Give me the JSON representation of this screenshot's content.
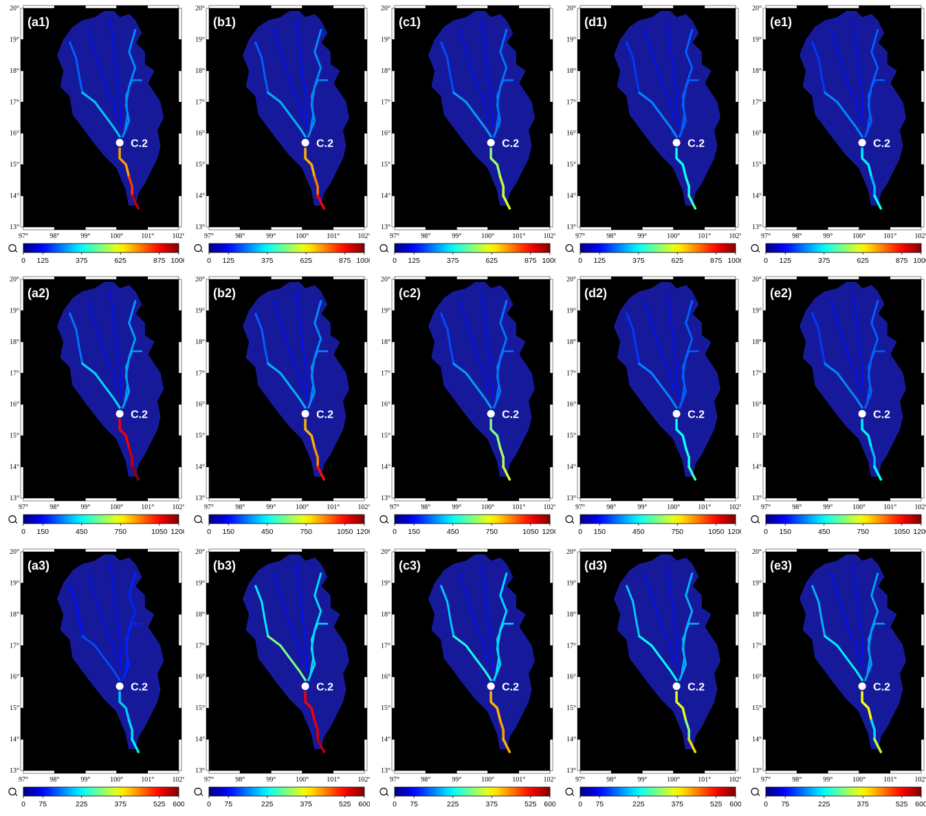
{
  "rows": [
    {
      "colorbar": {
        "min": 0,
        "max": 1000,
        "ticks": [
          "0",
          "125",
          "375",
          "625",
          "875",
          "1000"
        ]
      },
      "panels": [
        {
          "label": "(a1)",
          "gauge": "C.2",
          "downstream": [
            0.72,
            0.82,
            0.94
          ],
          "main_upstream": [
            0.22,
            0.32
          ],
          "east_upstream": 0.26
        },
        {
          "label": "(b1)",
          "gauge": "C.2",
          "downstream": [
            0.7,
            0.76,
            0.88
          ],
          "main_upstream": [
            0.22,
            0.3
          ],
          "east_upstream": 0.26
        },
        {
          "label": "(c1)",
          "gauge": "C.2",
          "downstream": [
            0.52,
            0.56,
            0.6
          ],
          "main_upstream": [
            0.2,
            0.28
          ],
          "east_upstream": 0.24
        },
        {
          "label": "(d1)",
          "gauge": "C.2",
          "downstream": [
            0.38,
            0.4,
            0.44
          ],
          "main_upstream": [
            0.18,
            0.26
          ],
          "east_upstream": 0.22
        },
        {
          "label": "(e1)",
          "gauge": "C.2",
          "downstream": [
            0.36,
            0.3,
            0.38
          ],
          "main_upstream": [
            0.18,
            0.26
          ],
          "east_upstream": 0.22
        }
      ]
    },
    {
      "colorbar": {
        "min": 0,
        "max": 1200,
        "ticks": [
          "0",
          "150",
          "450",
          "750",
          "1050",
          "1200"
        ]
      },
      "panels": [
        {
          "label": "(a2)",
          "gauge": "C.2",
          "downstream": [
            0.88,
            0.92,
            0.98
          ],
          "main_upstream": [
            0.24,
            0.34
          ],
          "east_upstream": 0.28
        },
        {
          "label": "(b2)",
          "gauge": "C.2",
          "downstream": [
            0.7,
            0.74,
            0.86
          ],
          "main_upstream": [
            0.22,
            0.3
          ],
          "east_upstream": 0.26
        },
        {
          "label": "(c2)",
          "gauge": "C.2",
          "downstream": [
            0.5,
            0.54,
            0.58
          ],
          "main_upstream": [
            0.2,
            0.28
          ],
          "east_upstream": 0.24
        },
        {
          "label": "(d2)",
          "gauge": "C.2",
          "downstream": [
            0.38,
            0.4,
            0.44
          ],
          "main_upstream": [
            0.18,
            0.26
          ],
          "east_upstream": 0.22
        },
        {
          "label": "(e2)",
          "gauge": "C.2",
          "downstream": [
            0.36,
            0.3,
            0.38
          ],
          "main_upstream": [
            0.18,
            0.26
          ],
          "east_upstream": 0.22
        }
      ]
    },
    {
      "colorbar": {
        "min": 0,
        "max": 600,
        "ticks": [
          "0",
          "75",
          "225",
          "375",
          "525",
          "600"
        ]
      },
      "panels": [
        {
          "label": "(a3)",
          "gauge": "C.2",
          "downstream": [
            0.32,
            0.34,
            0.36
          ],
          "main_upstream": [
            0.14,
            0.2
          ],
          "east_upstream": 0.16
        },
        {
          "label": "(b3)",
          "gauge": "C.2",
          "downstream": [
            0.88,
            0.9,
            0.94
          ],
          "main_upstream": [
            0.36,
            0.5
          ],
          "east_upstream": 0.34
        },
        {
          "label": "(c3)",
          "gauge": "C.2",
          "downstream": [
            0.7,
            0.72,
            0.7
          ],
          "main_upstream": [
            0.32,
            0.4
          ],
          "east_upstream": 0.34
        },
        {
          "label": "(d3)",
          "gauge": "C.2",
          "downstream": [
            0.6,
            0.5,
            0.66
          ],
          "main_upstream": [
            0.32,
            0.38
          ],
          "east_upstream": 0.3
        },
        {
          "label": "(e3)",
          "gauge": "C.2",
          "downstream": [
            0.62,
            0.34,
            0.56
          ],
          "main_upstream": [
            0.3,
            0.36
          ],
          "east_upstream": 0.28
        }
      ]
    }
  ],
  "map": {
    "lon_ticks": [
      "97°",
      "98°",
      "99°",
      "100°",
      "101°",
      "102°"
    ],
    "lat_ticks": [
      "13°",
      "14°",
      "15°",
      "16°",
      "17°",
      "18°",
      "19°",
      "20°"
    ],
    "lon_range": [
      97,
      102
    ],
    "lat_range": [
      13,
      20
    ],
    "gauge_location": {
      "lon": 100.1,
      "lat": 15.7
    },
    "background": "#000000",
    "basin_fill": "#16199a",
    "river_base": "#1f3dff",
    "gauge_color": "#ffffff"
  },
  "colormap": "jet"
}
